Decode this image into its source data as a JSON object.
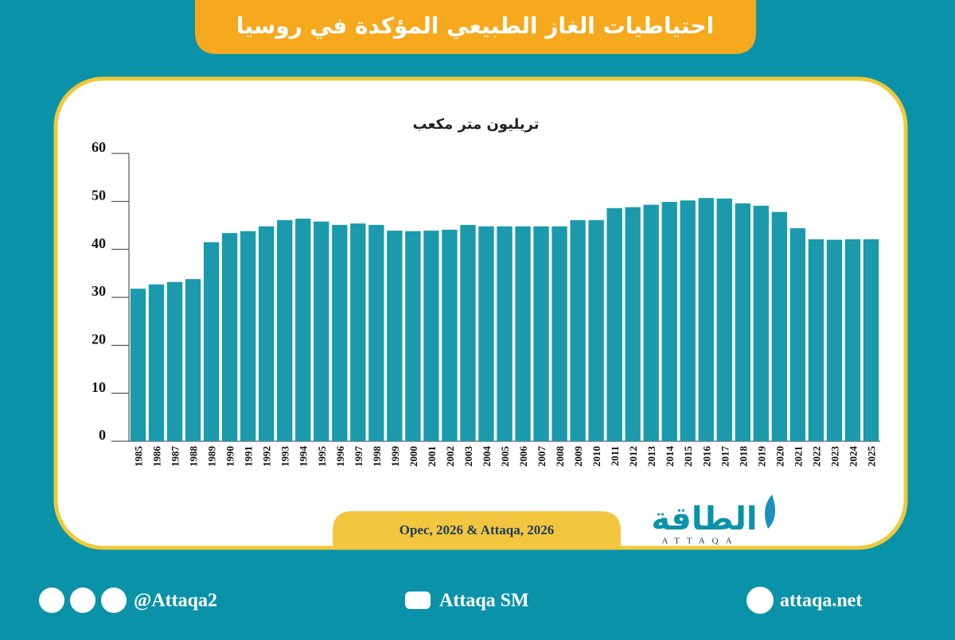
{
  "chart_data": {
    "type": "bar",
    "title": "احتياطيات الغاز الطبيعي المؤكدة في روسيا",
    "y_label": "تريليون متر مكعب",
    "categories": [
      "1985",
      "1986",
      "1987",
      "1988",
      "1989",
      "1990",
      "1991",
      "1992",
      "1993",
      "1994",
      "1995",
      "1996",
      "1997",
      "1998",
      "1999",
      "2000",
      "2001",
      "2002",
      "2003",
      "2004",
      "2005",
      "2006",
      "2007",
      "2008",
      "2009",
      "2010",
      "2011",
      "2012",
      "2013",
      "2014",
      "2015",
      "2016",
      "2017",
      "2018",
      "2019",
      "2020",
      "2021",
      "2022",
      "2023",
      "2024",
      "2025"
    ],
    "values": [
      31.8,
      32.7,
      33.2,
      33.8,
      41.5,
      43.4,
      43.8,
      44.8,
      46.1,
      46.4,
      45.8,
      45.1,
      45.4,
      45.1,
      43.9,
      43.8,
      43.9,
      44.1,
      45.1,
      44.8,
      44.8,
      44.8,
      44.8,
      44.8,
      46.1,
      46.1,
      48.6,
      48.8,
      49.3,
      49.9,
      50.2,
      50.7,
      50.6,
      49.6,
      49.1,
      47.8,
      44.4,
      42.1,
      42.0,
      42.1,
      42.1
    ],
    "color": "#1a9aab",
    "ylim": [
      0,
      60
    ],
    "yticks": [
      0,
      10,
      20,
      30,
      40,
      50,
      60
    ],
    "grid": false,
    "source": "Opec, 2026 & Attaqa, 2026"
  },
  "logo": {
    "name": "الطاقة",
    "latin": "ATTAQA"
  },
  "footer": {
    "social": "@Attaqa2",
    "youtube": "Attaqa SM",
    "website": "attaqa.net"
  }
}
